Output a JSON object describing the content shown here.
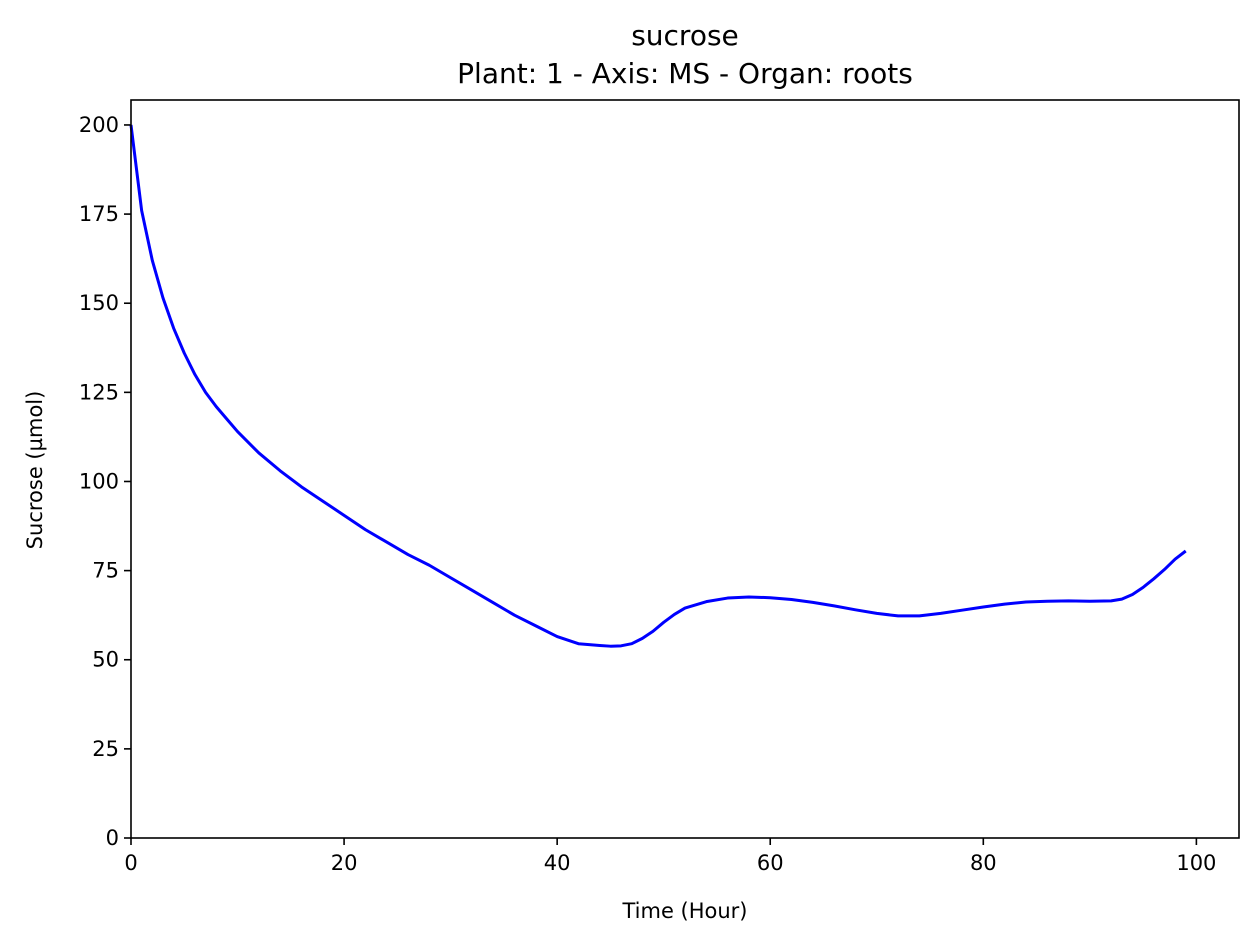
{
  "chart_data": {
    "type": "line",
    "title": "sucrose",
    "subtitle": "Plant: 1 - Axis: MS - Organ: roots",
    "xlabel": "Time (Hour)",
    "ylabel": "Sucrose (µmol)",
    "xlim": [
      0,
      104
    ],
    "ylim": [
      0,
      207
    ],
    "xticks": [
      0,
      20,
      40,
      60,
      80,
      100
    ],
    "yticks": [
      0,
      25,
      50,
      75,
      100,
      125,
      150,
      175,
      200
    ],
    "grid": false,
    "legend": null,
    "series": [
      {
        "color": "#0000ff",
        "x": [
          0,
          1,
          2,
          3,
          4,
          5,
          6,
          7,
          8,
          9,
          10,
          12,
          14,
          16,
          18,
          20,
          22,
          24,
          26,
          28,
          30,
          32,
          34,
          36,
          38,
          40,
          42,
          44,
          45,
          46,
          47,
          48,
          49,
          50,
          51,
          52,
          54,
          56,
          58,
          60,
          62,
          64,
          66,
          68,
          70,
          72,
          74,
          76,
          78,
          80,
          82,
          84,
          86,
          88,
          90,
          92,
          93,
          94,
          95,
          96,
          97,
          98,
          99
        ],
        "y": [
          200,
          176,
          162,
          151.5,
          143,
          136,
          130,
          125,
          121,
          117.5,
          114,
          108,
          103,
          98.5,
          94.5,
          90.5,
          86.5,
          83,
          79.5,
          76.5,
          73,
          69.5,
          66,
          62.5,
          59.5,
          56.5,
          54.5,
          54,
          53.8,
          53.9,
          54.5,
          56,
          58,
          60.5,
          62.7,
          64.5,
          66.3,
          67.3,
          67.6,
          67.4,
          66.9,
          66.1,
          65.1,
          64,
          63,
          62.3,
          62.3,
          63,
          63.9,
          64.8,
          65.6,
          66.2,
          66.4,
          66.5,
          66.4,
          66.5,
          67,
          68.3,
          70.3,
          72.7,
          75.3,
          78.2,
          80.5
        ]
      }
    ]
  }
}
